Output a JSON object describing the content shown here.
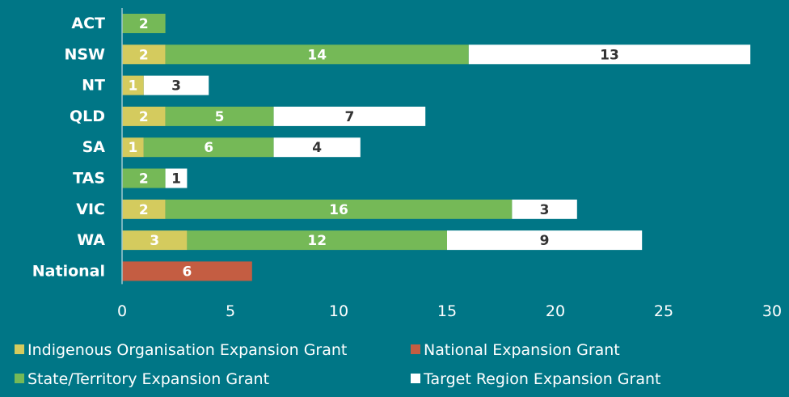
{
  "chart_data": {
    "type": "bar",
    "orientation": "horizontal",
    "stacked": true,
    "title": "",
    "xlabel": "",
    "ylabel": "",
    "xlim": [
      0,
      30
    ],
    "x_ticks": [
      0,
      5,
      10,
      15,
      20,
      25,
      30
    ],
    "grid": false,
    "legend_position": "bottom",
    "categories": [
      "ACT",
      "NSW",
      "NT",
      "QLD",
      "SA",
      "TAS",
      "VIC",
      "WA",
      "National"
    ],
    "series": [
      {
        "name": "Indigenous Organisation Expansion Grant",
        "color": "#D4CB5E",
        "label_color": "#FFFFFF",
        "values": [
          0,
          2,
          1,
          2,
          1,
          0,
          2,
          3,
          0
        ]
      },
      {
        "name": "State/Territory Expansion Grant",
        "color": "#75B957",
        "label_color": "#FFFFFF",
        "values": [
          2,
          14,
          0,
          5,
          6,
          2,
          16,
          12,
          0
        ]
      },
      {
        "name": "Target Region Expansion Grant",
        "color": "#FFFFFF",
        "label_color": "#333333",
        "values": [
          0,
          13,
          3,
          7,
          4,
          1,
          3,
          9,
          0
        ]
      },
      {
        "name": "National Expansion Grant",
        "color": "#C45D42",
        "label_color": "#FFFFFF",
        "values": [
          0,
          0,
          0,
          0,
          0,
          0,
          0,
          0,
          6
        ]
      }
    ],
    "legend": [
      {
        "name": "Indigenous Organisation Expansion Grant",
        "color": "#D4CB5E"
      },
      {
        "name": "National Expansion Grant",
        "color": "#C45D42"
      },
      {
        "name": "State/Territory Expansion Grant",
        "color": "#75B957"
      },
      {
        "name": "Target Region Expansion Grant",
        "color": "#FFFFFF"
      }
    ]
  }
}
